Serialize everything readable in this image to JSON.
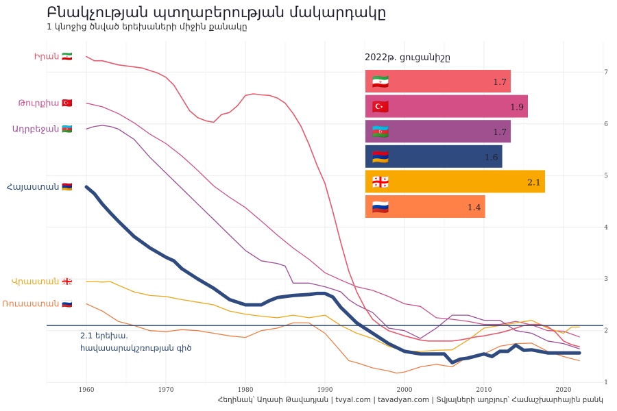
{
  "header": {
    "title": "Բնակչության պտղաբերության մակարդակը",
    "subtitle": "1 կնոջից ծնված երեխաների միջին քանակը"
  },
  "caption": "Հեղինակ՝ Աղասի Թավադյան   |   tvyal.com   |   tavadyan.com   |   Տվյալների աղբյուր՝ Համաշխարհային բանկ",
  "chart_data": {
    "type": "line",
    "title": "Բնակչության պտղաբերության մակարդակը",
    "subtitle": "1 կնոջից ծնված երեխաների միջին քանակը",
    "x_ticks": [
      1960,
      1970,
      1980,
      1990,
      2000,
      2010,
      2020
    ],
    "y_ticks": [
      1,
      2,
      3,
      4,
      5,
      6,
      7
    ],
    "xlim": [
      1955,
      2025
    ],
    "ylim": [
      0.95,
      7.6
    ],
    "grid": true,
    "y_axis_side": "right",
    "replacement_level": {
      "value": 2.1,
      "label_lines": [
        "2.1 երեխա.",
        "հավասարակշռության գիծ"
      ]
    },
    "series": [
      {
        "name": "Իրան",
        "flag": "🇮🇷",
        "color": "#e8586b",
        "width": 1.6,
        "x": [
          1960,
          1961,
          1962,
          1963,
          1964,
          1965,
          1966,
          1967,
          1968,
          1969,
          1970,
          1971,
          1972,
          1973,
          1974,
          1975,
          1976,
          1977,
          1978,
          1979,
          1980,
          1981,
          1982,
          1983,
          1984,
          1985,
          1986,
          1987,
          1988,
          1989,
          1990,
          1991,
          1992,
          1993,
          1994,
          1995,
          1996,
          1997,
          1998,
          1999,
          2000,
          2001,
          2002,
          2003,
          2004,
          2005,
          2006,
          2007,
          2008,
          2009,
          2010,
          2011,
          2012,
          2013,
          2014,
          2015,
          2016,
          2017,
          2018,
          2019,
          2020,
          2021,
          2022
        ],
        "y": [
          7.3,
          7.22,
          7.22,
          7.18,
          7.14,
          7.12,
          7.1,
          7.08,
          7.03,
          6.98,
          6.9,
          6.75,
          6.5,
          6.25,
          6.12,
          6.06,
          6.03,
          6.18,
          6.22,
          6.35,
          6.55,
          6.58,
          6.56,
          6.55,
          6.5,
          6.4,
          6.2,
          5.95,
          5.6,
          5.2,
          4.85,
          4.3,
          3.7,
          3.15,
          2.75,
          2.45,
          2.22,
          2.1,
          2.0,
          1.95,
          1.9,
          1.86,
          1.82,
          1.8,
          1.8,
          1.8,
          1.8,
          1.82,
          1.85,
          1.88,
          1.9,
          1.93,
          1.96,
          2.0,
          2.05,
          2.1,
          2.12,
          2.12,
          2.08,
          1.97,
          1.8,
          1.73,
          1.69
        ]
      },
      {
        "name": "Թուրքիա",
        "flag": "🇹🇷",
        "color": "#cd4f8c",
        "width": 1.3,
        "x": [
          1960,
          1962,
          1964,
          1966,
          1968,
          1970,
          1972,
          1974,
          1976,
          1978,
          1980,
          1982,
          1984,
          1986,
          1988,
          1990,
          1992,
          1994,
          1996,
          1998,
          2000,
          2002,
          2004,
          2006,
          2008,
          2010,
          2012,
          2014,
          2016,
          2018,
          2020,
          2022
        ],
        "y": [
          6.4,
          6.33,
          6.2,
          6.02,
          5.8,
          5.62,
          5.38,
          5.1,
          4.8,
          4.58,
          4.38,
          4.12,
          3.85,
          3.6,
          3.38,
          3.12,
          2.98,
          2.85,
          2.78,
          2.66,
          2.52,
          2.47,
          2.25,
          2.22,
          2.18,
          2.12,
          2.12,
          2.18,
          2.11,
          2.0,
          1.99,
          1.88
        ]
      },
      {
        "name": "Ադրբեջան",
        "flag": "🇦🇿",
        "color": "#9d4c97",
        "width": 1.3,
        "x": [
          1960,
          1961,
          1962,
          1963,
          1964,
          1966,
          1968,
          1970,
          1972,
          1974,
          1976,
          1978,
          1980,
          1982,
          1984,
          1985,
          1986,
          1988,
          1990,
          1991,
          1992,
          1993,
          1994,
          1996,
          1998,
          2000,
          2002,
          2004,
          2006,
          2008,
          2010,
          2012,
          2014,
          2016,
          2018,
          2020,
          2022
        ],
        "y": [
          5.9,
          5.95,
          5.97,
          5.95,
          5.9,
          5.7,
          5.35,
          5.05,
          4.75,
          4.45,
          4.15,
          3.85,
          3.55,
          3.35,
          3.3,
          3.25,
          2.92,
          2.92,
          2.85,
          2.8,
          2.75,
          2.6,
          2.5,
          2.35,
          2.05,
          2.0,
          1.85,
          2.05,
          2.3,
          2.3,
          2.2,
          2.2,
          2.0,
          1.95,
          1.8,
          1.75,
          1.65
        ]
      },
      {
        "name": "Հայաստան",
        "flag": "🇦🇲",
        "color": "#2e4a7e",
        "width": 5,
        "x": [
          1960,
          1961,
          1962,
          1963,
          1964,
          1966,
          1968,
          1970,
          1971,
          1972,
          1974,
          1976,
          1978,
          1980,
          1981,
          1982,
          1983,
          1984,
          1985,
          1986,
          1988,
          1989,
          1990,
          1991,
          1992,
          1993,
          1994,
          1995,
          1996,
          1998,
          2000,
          2002,
          2004,
          2005,
          2006,
          2007,
          2008,
          2010,
          2011,
          2012,
          2013,
          2014,
          2015,
          2016,
          2018,
          2020,
          2022
        ],
        "y": [
          4.78,
          4.65,
          4.45,
          4.28,
          4.12,
          3.82,
          3.6,
          3.42,
          3.35,
          3.2,
          3.0,
          2.82,
          2.6,
          2.5,
          2.5,
          2.5,
          2.58,
          2.64,
          2.66,
          2.68,
          2.7,
          2.72,
          2.72,
          2.65,
          2.45,
          2.3,
          2.15,
          2.05,
          1.95,
          1.75,
          1.6,
          1.55,
          1.55,
          1.55,
          1.38,
          1.45,
          1.47,
          1.55,
          1.5,
          1.6,
          1.6,
          1.72,
          1.62,
          1.63,
          1.57,
          1.57,
          1.57
        ]
      },
      {
        "name": "Վրաստան",
        "flag": "🇬🇪",
        "color": "#f2a516",
        "width": 1.3,
        "x": [
          1960,
          1961,
          1962,
          1963,
          1964,
          1966,
          1968,
          1970,
          1972,
          1974,
          1976,
          1978,
          1980,
          1982,
          1984,
          1986,
          1988,
          1990,
          1992,
          1994,
          1996,
          1998,
          2000,
          2002,
          2004,
          2006,
          2008,
          2010,
          2012,
          2014,
          2016,
          2018,
          2020,
          2021,
          2022
        ],
        "y": [
          2.95,
          2.95,
          2.94,
          2.95,
          2.88,
          2.75,
          2.68,
          2.66,
          2.6,
          2.55,
          2.5,
          2.38,
          2.32,
          2.28,
          2.25,
          2.3,
          2.25,
          2.3,
          2.1,
          1.95,
          1.85,
          1.7,
          1.6,
          1.6,
          1.62,
          1.63,
          1.82,
          2.05,
          2.1,
          2.15,
          2.2,
          2.05,
          1.95,
          2.07,
          2.07
        ]
      },
      {
        "name": "Ռուսաստան",
        "flag": "🇷🇺",
        "color": "#f07f45",
        "width": 1.3,
        "x": [
          1960,
          1962,
          1964,
          1966,
          1968,
          1970,
          1972,
          1974,
          1976,
          1978,
          1980,
          1982,
          1984,
          1986,
          1988,
          1990,
          1992,
          1993,
          1994,
          1996,
          1998,
          1999,
          2000,
          2002,
          2004,
          2006,
          2008,
          2010,
          2012,
          2014,
          2016,
          2018,
          2020,
          2022
        ],
        "y": [
          2.52,
          2.38,
          2.18,
          2.1,
          2.0,
          1.98,
          2.02,
          2.0,
          1.95,
          1.9,
          1.87,
          2.0,
          2.05,
          2.15,
          2.15,
          1.95,
          1.6,
          1.42,
          1.38,
          1.28,
          1.22,
          1.18,
          1.2,
          1.3,
          1.35,
          1.3,
          1.5,
          1.55,
          1.7,
          1.75,
          1.76,
          1.6,
          1.5,
          1.42
        ]
      }
    ],
    "inset": {
      "type": "bar",
      "orientation": "horizontal",
      "title": "2022թ. ցուցանիշը",
      "xlim": [
        0,
        2.4
      ],
      "bars": [
        {
          "flag": "🇮🇷",
          "value": 1.7,
          "label": "1.7",
          "color": "#f2616a"
        },
        {
          "flag": "🇹🇷",
          "value": 1.9,
          "label": "1.9",
          "color": "#d44f86"
        },
        {
          "flag": "🇦🇿",
          "value": 1.7,
          "label": "1.7",
          "color": "#a0508f"
        },
        {
          "flag": "🇦🇲",
          "value": 1.6,
          "label": "1.6",
          "color": "#2e4a7e"
        },
        {
          "flag": "🇬🇪",
          "value": 2.1,
          "label": "2.1",
          "color": "#f9a800"
        },
        {
          "flag": "🇷🇺",
          "value": 1.4,
          "label": "1.4",
          "color": "#ff8148"
        }
      ]
    }
  }
}
